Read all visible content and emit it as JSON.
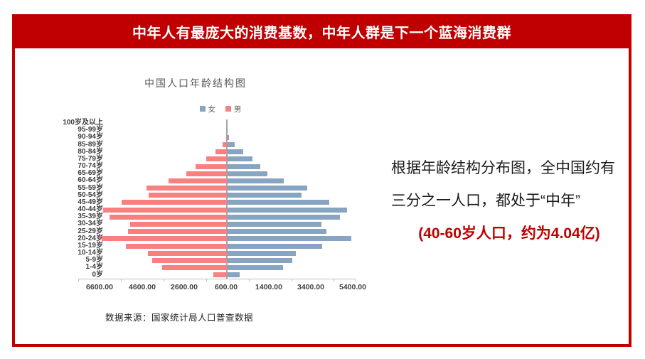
{
  "banner": {
    "title": "中年人有最庞大的消费基数，中年人群是下一个蓝海消费群",
    "bg_color": "#c00000"
  },
  "chart": {
    "title": "中国人口年龄结构图",
    "legend": [
      {
        "label": "女",
        "color": "#87a5c1"
      },
      {
        "label": "男",
        "color": "#f98080"
      }
    ],
    "source": "数据来源：国家统计局人口普查数据"
  },
  "chart_data": {
    "type": "bar",
    "subtype": "population-pyramid",
    "title": "中国人口年龄结构图",
    "categories": [
      "100岁及以上",
      "95-99岁",
      "90-94岁",
      "85-89岁",
      "80-84岁",
      "75-79岁",
      "70-74岁",
      "65-69岁",
      "60-64岁",
      "55-59岁",
      "50-54岁",
      "45-49岁",
      "40-44岁",
      "35-39岁",
      "30-34岁",
      "25-29岁",
      "20-24岁",
      "15-19岁",
      "10-14岁",
      "5-9岁",
      "1-4岁",
      "0岁"
    ],
    "series": [
      {
        "name": "男",
        "side": "left",
        "color": "#f98080",
        "values": [
          0,
          10,
          40,
          190,
          540,
          980,
          1480,
          1900,
          2740,
          3790,
          3700,
          4960,
          5840,
          5540,
          4560,
          4680,
          5930,
          4760,
          3720,
          3530,
          3050,
          640
        ]
      },
      {
        "name": "女",
        "side": "right",
        "color": "#87a5c1",
        "values": [
          0,
          15,
          110,
          360,
          760,
          1210,
          1570,
          1900,
          2690,
          3790,
          3530,
          4850,
          5690,
          5340,
          4460,
          4700,
          5880,
          4510,
          3250,
          3080,
          2670,
          620
        ]
      }
    ],
    "x_tick_labels": [
      "6600.00",
      "4600.00",
      "2600.00",
      "600.00",
      "1400.00",
      "3400.00",
      "5400.00"
    ],
    "x_tick_step": 2000,
    "xlim": [
      -7000,
      6000
    ],
    "legend_position": "top",
    "grid": false
  },
  "annotation": {
    "line1": "根据年龄结构分布图，全中国约有",
    "line2": "三分之一人口，都处于“中年”",
    "line3": "(40-60岁人口，约为4.04亿)"
  }
}
